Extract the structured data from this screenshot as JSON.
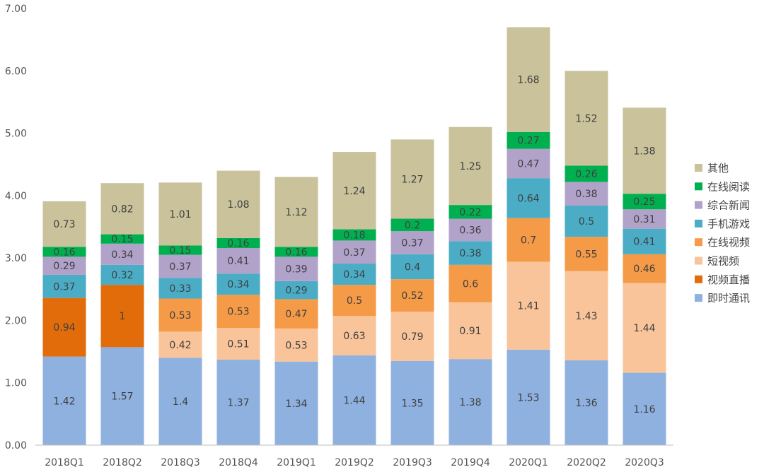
{
  "chart_data": {
    "type": "bar",
    "stacked": true,
    "title": "",
    "xlabel": "",
    "ylabel": "",
    "ylim": [
      0,
      7
    ],
    "y_ticks": [
      "0.00",
      "1.00",
      "2.00",
      "3.00",
      "4.00",
      "5.00",
      "6.00",
      "7.00"
    ],
    "grid": false,
    "legend_position": "right",
    "categories": [
      "2018Q1",
      "2018Q2",
      "2018Q3",
      "2018Q4",
      "2019Q1",
      "2019Q2",
      "2019Q3",
      "2019Q4",
      "2020Q1",
      "2020Q2",
      "2020Q3"
    ],
    "series": [
      {
        "name": "即时通讯",
        "color": "#8FB1E0",
        "values": [
          1.42,
          1.57,
          1.4,
          1.37,
          1.34,
          1.44,
          1.35,
          1.38,
          1.53,
          1.36,
          1.16
        ]
      },
      {
        "name": "视频直播",
        "color": "#E36C0A",
        "values": [
          0.94,
          1.0,
          null,
          null,
          null,
          null,
          null,
          null,
          null,
          null,
          null
        ]
      },
      {
        "name": "短视频",
        "color": "#F9C499",
        "values": [
          null,
          null,
          0.42,
          0.51,
          0.53,
          0.63,
          0.79,
          0.91,
          1.41,
          1.43,
          1.44
        ]
      },
      {
        "name": "在线视频",
        "color": "#F59A46",
        "values": [
          null,
          null,
          0.53,
          0.53,
          0.47,
          0.5,
          0.52,
          0.6,
          0.7,
          0.55,
          0.46
        ]
      },
      {
        "name": "手机游戏",
        "color": "#4BACC6",
        "values": [
          0.37,
          0.32,
          0.33,
          0.34,
          0.29,
          0.34,
          0.4,
          0.38,
          0.64,
          0.5,
          0.41
        ]
      },
      {
        "name": "综合新闻",
        "color": "#B1A2CA",
        "values": [
          0.29,
          0.34,
          0.37,
          0.41,
          0.39,
          0.37,
          0.37,
          0.36,
          0.47,
          0.38,
          0.31
        ]
      },
      {
        "name": "在线阅读",
        "color": "#00B050",
        "values": [
          0.16,
          0.15,
          0.15,
          0.16,
          0.16,
          0.18,
          0.2,
          0.22,
          0.27,
          0.26,
          0.25
        ]
      },
      {
        "name": "其他",
        "color": "#C9C29B",
        "values": [
          0.73,
          0.82,
          1.01,
          1.08,
          1.12,
          1.24,
          1.27,
          1.25,
          1.68,
          1.52,
          1.38
        ]
      }
    ],
    "totals": [
      3.9,
      4.2,
      4.2,
      4.4,
      4.3,
      4.7,
      4.9,
      5.1,
      6.7,
      6.0,
      5.4
    ]
  }
}
